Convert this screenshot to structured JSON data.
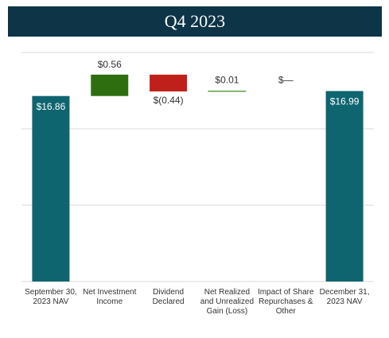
{
  "chart_data": {
    "type": "waterfall",
    "title": "Q4 2023",
    "categories": [
      "September 30, 2023 NAV",
      "Net Investment Income",
      "Dividend Declared",
      "Net Realized and Unrealized Gain (Loss)",
      "Impact of Share Repurchases & Other",
      "December 31, 2023 NAV"
    ],
    "measure": [
      "total",
      "relative",
      "relative",
      "relative",
      "relative",
      "total"
    ],
    "values": [
      16.86,
      0.56,
      -0.44,
      0.01,
      0,
      16.99
    ],
    "value_labels": [
      "$16.86",
      "$0.56",
      "$(0.44)",
      "$0.01",
      "$—",
      "$16.99"
    ],
    "total_color": "#0e6570",
    "increase_color": "#2e6e10",
    "decrease_color": "#c0201a",
    "ylim": [
      12,
      18
    ],
    "yticks": [
      12,
      14,
      16,
      18
    ],
    "grid": true
  }
}
